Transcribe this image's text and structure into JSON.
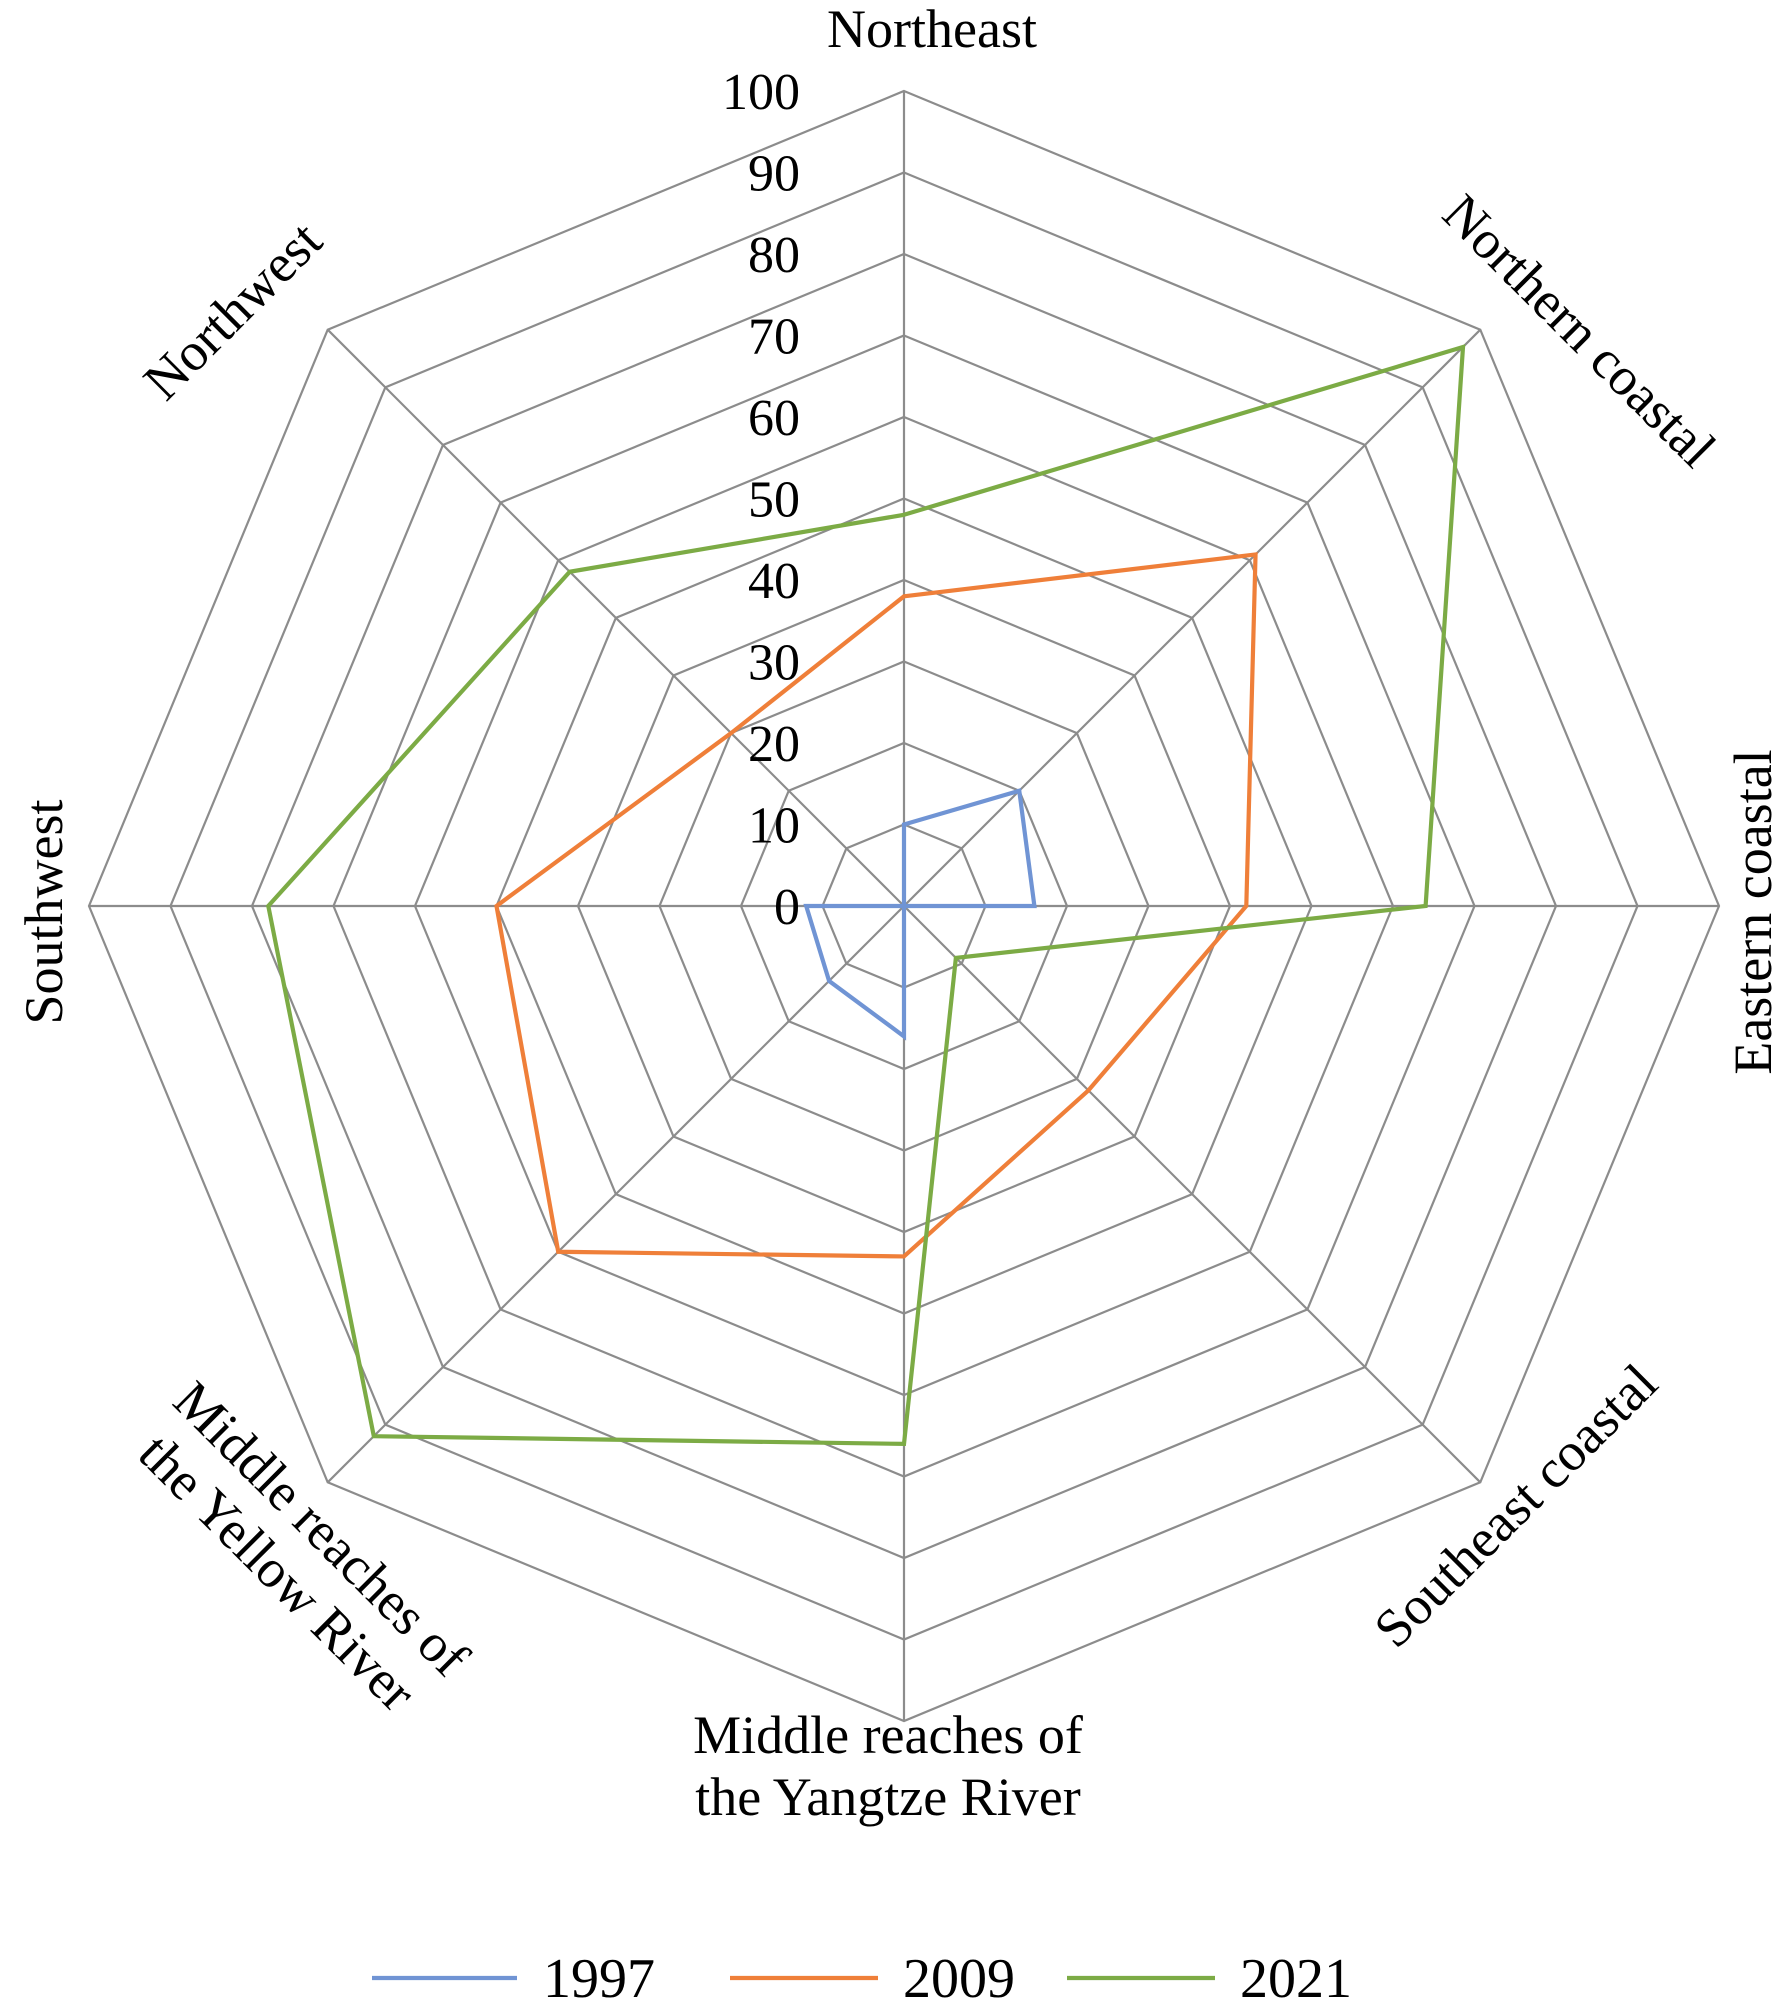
{
  "chart_data": {
    "type": "radar",
    "categories": [
      "Northeast",
      "Northern coastal",
      "Eastern coastal",
      "Southeast coastal",
      "Middle reaches of the Yangtze River",
      "Middle reaches of the Yellow River",
      "Southwest",
      "Northwest"
    ],
    "category_label_lines": [
      [
        "Northeast"
      ],
      [
        "Northern coastal"
      ],
      [
        "Eastern coastal"
      ],
      [
        "Southeast coastal"
      ],
      [
        "Middle reaches of",
        "the Yangtze River"
      ],
      [
        "Middle reaches of",
        "the Yellow River"
      ],
      [
        "Southwest"
      ],
      [
        "Northwest"
      ]
    ],
    "ticks": [
      "0",
      "10",
      "20",
      "30",
      "40",
      "50",
      "60",
      "70",
      "80",
      "90",
      "100"
    ],
    "range": [
      0,
      100
    ],
    "grid": true,
    "legend_position": "bottom",
    "series": [
      {
        "name": "1997",
        "color": "#7094d4",
        "values": [
          10,
          20,
          16,
          0,
          16,
          13,
          12,
          0
        ]
      },
      {
        "name": "2009",
        "color": "#ef7f39",
        "values": [
          38,
          61,
          42,
          32,
          43,
          60,
          50,
          30
        ]
      },
      {
        "name": "2021",
        "color": "#7cab45",
        "values": [
          48,
          97,
          64,
          9,
          66,
          92,
          78,
          58
        ]
      }
    ]
  }
}
